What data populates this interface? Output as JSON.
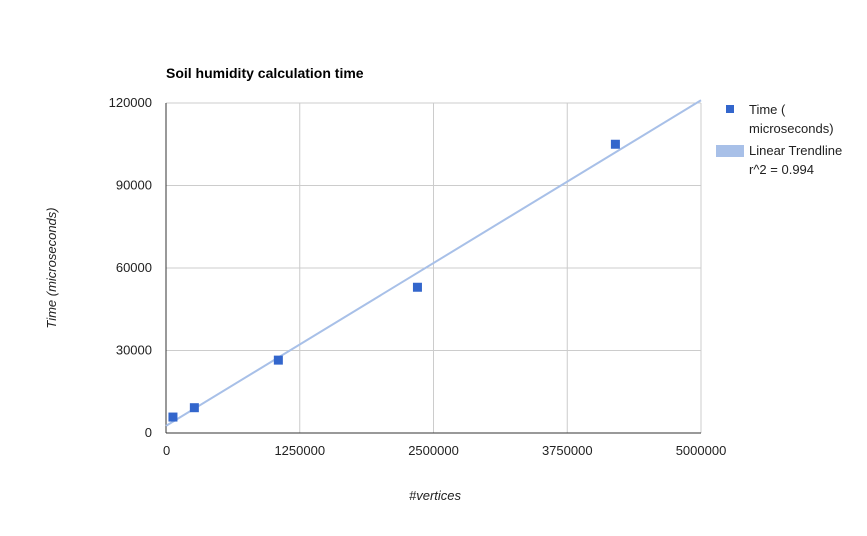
{
  "chart_data": {
    "type": "scatter",
    "title": "Soil humidity calculation time",
    "xlabel": "#vertices",
    "ylabel": "Time (microseconds)",
    "xlim": [
      0,
      5000000
    ],
    "ylim": [
      0,
      120000
    ],
    "x_ticks": [
      "0",
      "1250000",
      "2500000",
      "3750000",
      "5000000"
    ],
    "y_ticks": [
      "0",
      "30000",
      "60000",
      "90000",
      "120000"
    ],
    "grid": true,
    "legend_position": "right",
    "series": [
      {
        "name": "Time ( microseconds)",
        "legend_lines": [
          "Time (",
          "microseconds)"
        ],
        "color": "#3366cc",
        "marker": "square",
        "points": [
          {
            "x": 65000,
            "y": 5800
          },
          {
            "x": 265000,
            "y": 9200
          },
          {
            "x": 1050000,
            "y": 26500
          },
          {
            "x": 2350000,
            "y": 53000
          },
          {
            "x": 4200000,
            "y": 105000
          }
        ]
      }
    ],
    "trendline": {
      "name": "Linear Trendline",
      "label": "r^2 = 0.994",
      "color": "#a8c0e8",
      "start": {
        "x": 0,
        "y": 2600
      },
      "end": {
        "x": 5000000,
        "y": 121000
      }
    }
  }
}
